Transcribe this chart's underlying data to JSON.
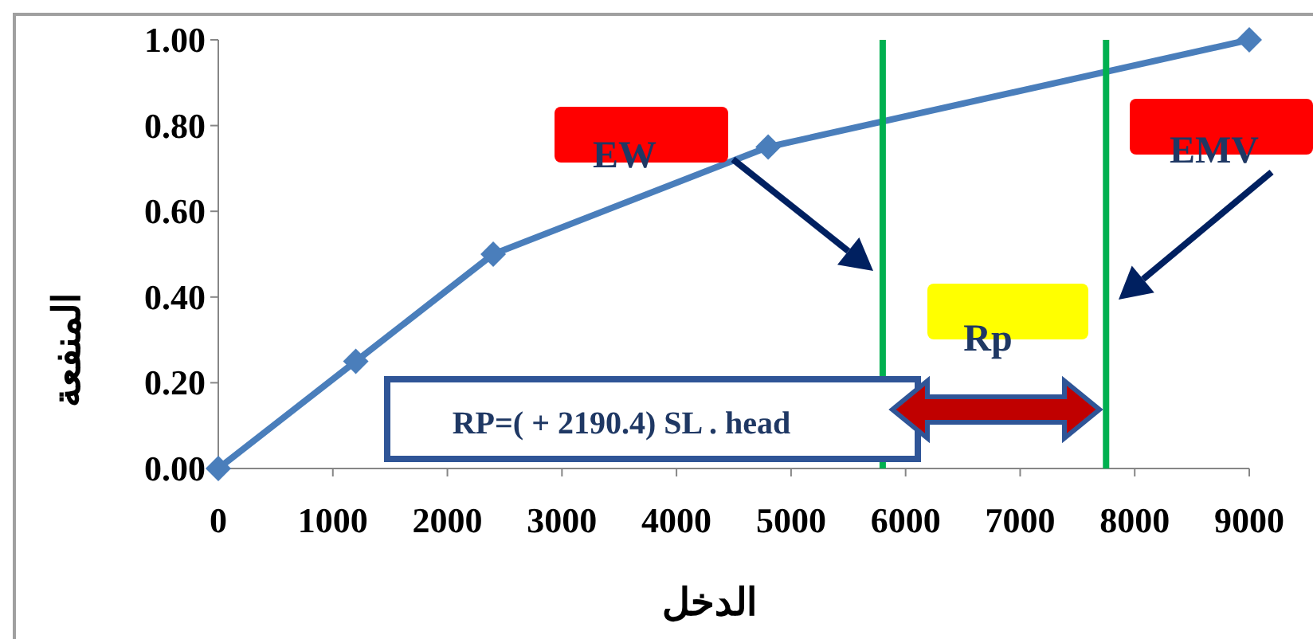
{
  "chart_data": {
    "type": "line",
    "xlabel": "الدخل",
    "ylabel": "المنفعة",
    "x": [
      0,
      1200,
      2400,
      4800,
      9000
    ],
    "series": [
      {
        "color": "#4a7ebb",
        "values": [
          0,
          0.25,
          0.5,
          0.75,
          1.0
        ]
      }
    ],
    "xlim": [
      0,
      9000
    ],
    "xticks": [
      0,
      1000,
      2000,
      3000,
      4000,
      5000,
      6000,
      7000,
      8000,
      9000
    ],
    "ylim": [
      0,
      1
    ],
    "yticks": [
      {
        "value": 0,
        "label": "0.00"
      },
      {
        "value": 0.2,
        "label": "0.20"
      },
      {
        "value": 0.4,
        "label": "0.40"
      },
      {
        "value": 0.6,
        "label": "0.60"
      },
      {
        "value": 0.8,
        "label": "0.80"
      },
      {
        "value": 1.0,
        "label": "1.00"
      }
    ],
    "marker": "diamond",
    "grid": false,
    "ref_lines": [
      {
        "axis": "x",
        "value": 5800,
        "color": "#00b050"
      },
      {
        "axis": "x",
        "value": 7750,
        "color": "#00b050"
      }
    ],
    "annotations": [
      "EW",
      "EMV",
      "Rp",
      "RP=( + 2190.4) SL . head"
    ]
  }
}
